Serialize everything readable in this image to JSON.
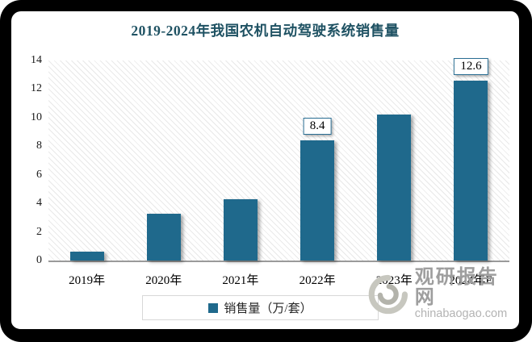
{
  "title": "2019-2024年我国农机自动驾驶系统销售量",
  "colors": {
    "frame": "#000000",
    "bar": "#1F698C",
    "title_text": "#1F5263",
    "axis_line": "#9A9A9A",
    "hatch_line": "#E9E9E9",
    "label_box_border": "#2A6E93",
    "legend_border": "#D8D8D8",
    "watermark_brand": "#9E9E9E",
    "watermark_domain": "#B3B3B3"
  },
  "chart_data": {
    "type": "bar",
    "title": "2019-2024年我国农机自动驾驶系统销售量",
    "categories": [
      "2019年",
      "2020年",
      "2021年",
      "2022年",
      "2023年",
      "2024年E"
    ],
    "series": [
      {
        "name": "销售量（万/套）",
        "values": [
          0.6,
          3.3,
          4.3,
          8.4,
          10.2,
          12.6
        ]
      }
    ],
    "data_labels": [
      null,
      null,
      null,
      "8.4",
      null,
      "12.6"
    ],
    "xlabel": "",
    "ylabel": "",
    "ylim": [
      0,
      14
    ],
    "y_ticks": [
      0,
      2,
      4,
      6,
      8,
      10,
      12,
      14
    ],
    "grid": false,
    "plot_background": "diagonal-hatch",
    "legend_position": "bottom"
  },
  "legend": {
    "label": "销售量（万/套）"
  },
  "watermark": {
    "brand": "观研报告网",
    "domain": "chinabaogao.com"
  }
}
